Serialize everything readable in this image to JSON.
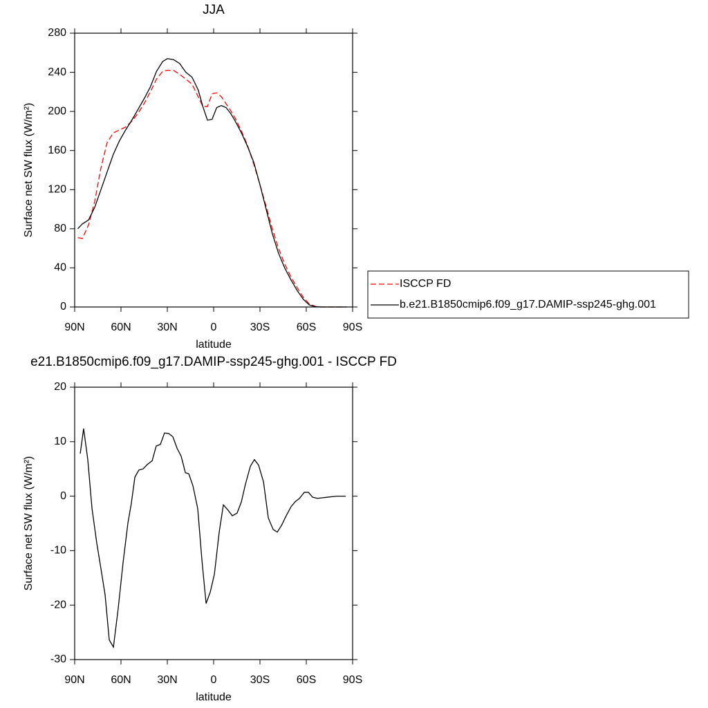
{
  "chart_data": [
    {
      "type": "line",
      "title": "JJA",
      "x_label": "latitude",
      "y_label": "Surface net SW flux (W/m²)",
      "x": [
        88,
        85,
        81,
        77,
        73,
        69,
        65,
        61,
        57,
        53,
        49,
        45,
        41,
        37,
        33,
        30,
        26,
        22,
        18,
        14,
        10,
        7,
        4,
        1,
        -2,
        -5,
        -8,
        -11,
        -14,
        -18,
        -22,
        -26,
        -30,
        -34,
        -38,
        -42,
        -46,
        -50,
        -54,
        -58,
        -62,
        -66,
        -70,
        -74,
        -78,
        -82,
        -86
      ],
      "series": [
        {
          "name": "ISCCP FD",
          "color": "#ff0000",
          "dashed": true,
          "values": [
            71,
            70,
            84,
            108,
            142,
            168,
            178,
            181,
            184,
            190,
            198,
            208,
            220,
            233,
            241,
            242,
            242,
            238,
            233,
            228,
            215,
            205,
            205,
            218,
            219,
            215,
            208,
            201,
            193,
            180,
            165,
            146,
            125,
            103,
            80,
            60,
            44,
            31,
            20,
            10,
            3,
            0.5,
            0,
            0,
            0,
            0,
            0
          ]
        },
        {
          "name": "b.e21.B1850cmip6.f09_g17.DAMIP-ssp245-ghg.001",
          "color": "#000000",
          "dashed": false,
          "values": [
            80,
            85,
            89,
            102,
            120,
            138,
            156,
            170,
            181,
            191,
            202,
            213,
            225,
            241,
            251,
            254,
            253,
            249,
            240,
            235,
            222,
            205,
            191,
            192,
            204,
            206,
            204,
            198,
            190,
            178,
            164,
            148,
            125,
            100,
            75,
            55,
            40,
            28,
            17,
            8,
            2,
            0.3,
            0,
            0,
            0,
            0,
            0
          ]
        }
      ],
      "xlim": [
        90,
        -90
      ],
      "xticks": [
        {
          "value": 90,
          "label": "90N"
        },
        {
          "value": 60,
          "label": "60N"
        },
        {
          "value": 30,
          "label": "30N"
        },
        0,
        {
          "value": -30,
          "label": "30S"
        },
        {
          "value": -60,
          "label": "60S"
        },
        {
          "value": -90,
          "label": "90S"
        }
      ],
      "ylim": [
        0,
        280
      ],
      "yticks": [
        0,
        40,
        80,
        120,
        160,
        200,
        240,
        280
      ],
      "legend": "right"
    },
    {
      "type": "line",
      "title": "e21.B1850cmip6.f09_g17.DAMIP-ssp245-ghg.001 - ISCCP FD",
      "x_label": "latitude",
      "y_label": "Surface net SW flux (W/m²)",
      "x": [
        86.4,
        84.2,
        81.5,
        78.8,
        75.7,
        73,
        70.3,
        67.6,
        64.9,
        61.8,
        58.7,
        55.5,
        53.3,
        51,
        48.4,
        45.7,
        43,
        39.8,
        37.2,
        34.5,
        31.8,
        29.1,
        26.4,
        23.7,
        21,
        18.3,
        16.1,
        13.4,
        10.3,
        7.6,
        4.9,
        2.2,
        -0.5,
        -3.6,
        -6.3,
        -9.4,
        -12.1,
        -15.2,
        -17.9,
        -20.6,
        -23.8,
        -26.4,
        -29.1,
        -32.3,
        -35.4,
        -38.5,
        -41.2,
        -43.9,
        -47,
        -50.2,
        -52.9,
        -55.6,
        -58.7,
        -61.4,
        -64.1,
        -67.2,
        -70.3,
        -73.4,
        -76.6,
        -79.7,
        -85.5
      ],
      "series": [
        {
          "color": "#000000",
          "dashed": false,
          "values": [
            7.8,
            12.4,
            6.7,
            -2.2,
            -8.6,
            -13.3,
            -18.1,
            -26.4,
            -27.7,
            -20.6,
            -12.3,
            -4.9,
            -1.3,
            3.5,
            4.8,
            5,
            5.8,
            6.5,
            9.2,
            9.5,
            11.6,
            11.5,
            10.9,
            8.8,
            7.3,
            4.3,
            4.1,
            1.9,
            -2.3,
            -11.7,
            -19.7,
            -17.6,
            -14.3,
            -6.6,
            -1.6,
            -2.6,
            -3.6,
            -3.1,
            -1.1,
            2.2,
            5.5,
            6.7,
            5.7,
            2.6,
            -4,
            -6.1,
            -6.6,
            -5.4,
            -3.6,
            -1.9,
            -1,
            -0.4,
            0.7,
            0.7,
            -0.2,
            -0.4,
            -0.3,
            -0.2,
            -0.1,
            0,
            0
          ]
        }
      ],
      "xlim": [
        90,
        -90
      ],
      "xticks": [
        {
          "value": 90,
          "label": "90N"
        },
        {
          "value": 60,
          "label": "60N"
        },
        {
          "value": 30,
          "label": "30N"
        },
        0,
        {
          "value": -30,
          "label": "30S"
        },
        {
          "value": -60,
          "label": "60S"
        },
        {
          "value": -90,
          "label": "90S"
        }
      ],
      "ylim": [
        -30,
        20
      ],
      "yticks": [
        -30,
        -20,
        -10,
        0,
        10,
        20
      ]
    }
  ]
}
